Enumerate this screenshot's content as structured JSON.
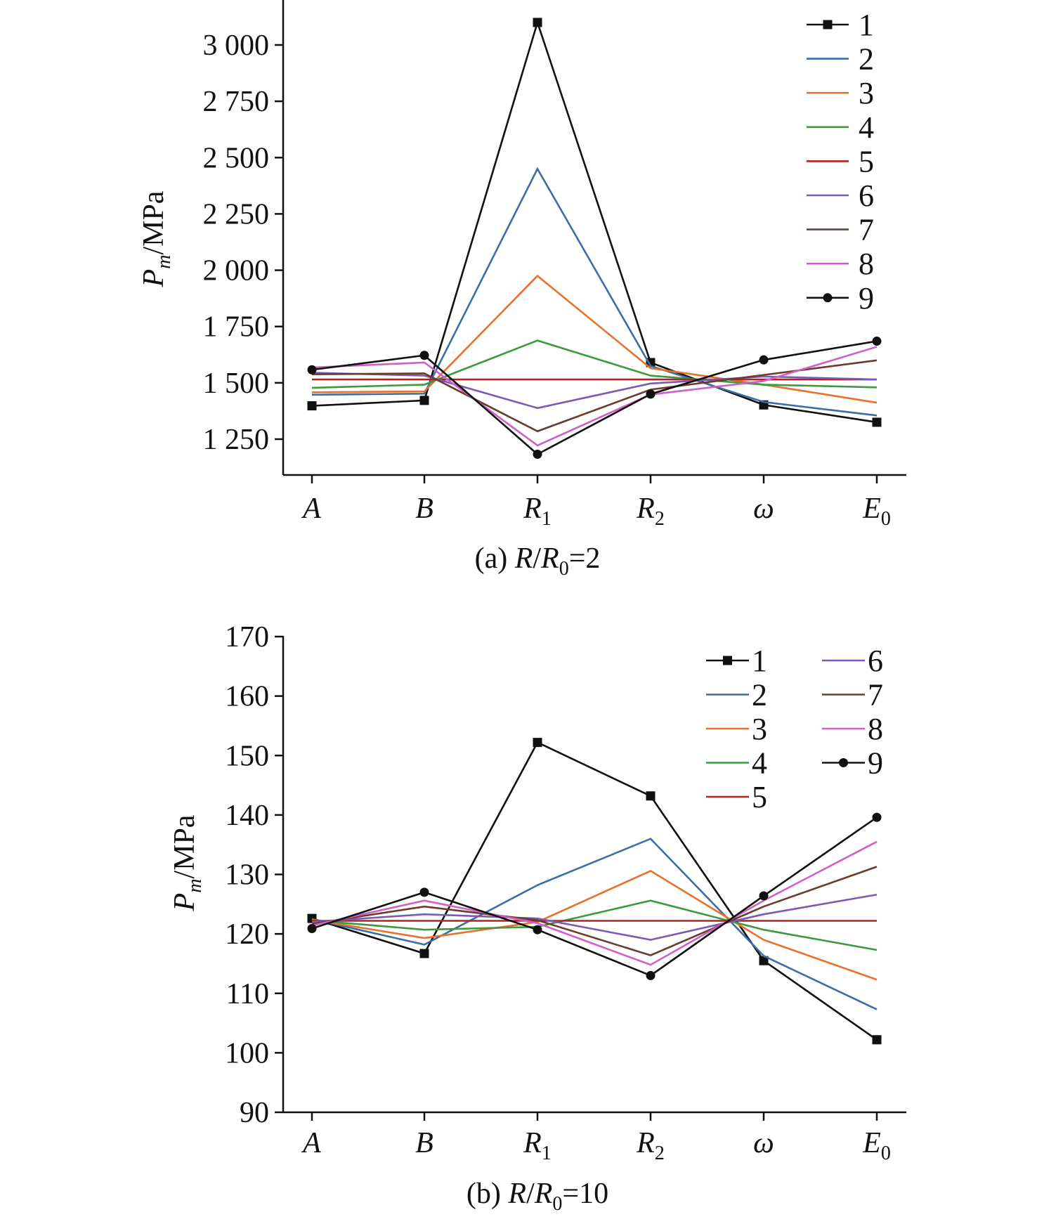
{
  "chart_data": [
    {
      "type": "line",
      "caption": {
        "prefix": "(a) ",
        "ratio_r": "R",
        "ratio_sep": "/",
        "ratio_r0": "R",
        "ratio_r0_sub": "0",
        "ratio_value": "=2"
      },
      "ylabel": {
        "p": "P",
        "sub": "m",
        "unit": "/MPa"
      },
      "ylim": [
        1160,
        3200
      ],
      "yticks": [
        1250,
        1500,
        1750,
        2000,
        2250,
        2500,
        2750,
        3000
      ],
      "ytick_labels": [
        "1 250",
        "1 500",
        "1 750",
        "2 000",
        "2 250",
        "2 500",
        "2 750",
        "3 000"
      ],
      "categories": [
        {
          "main": "A",
          "sub": ""
        },
        {
          "main": "B",
          "sub": ""
        },
        {
          "main": "R",
          "sub": "1"
        },
        {
          "main": "R",
          "sub": "2"
        },
        {
          "main": "ω",
          "sub": ""
        },
        {
          "main": "E",
          "sub": "0"
        }
      ],
      "legend_position": "top-right",
      "series": [
        {
          "name": "1",
          "color": "#111111",
          "marker": "square",
          "values": [
            1398,
            1422,
            3100,
            1590,
            1402,
            1325
          ]
        },
        {
          "name": "2",
          "color": "#3a6ea5",
          "marker": "none",
          "values": [
            1447,
            1452,
            2450,
            1575,
            1415,
            1355
          ]
        },
        {
          "name": "3",
          "color": "#e8702a",
          "marker": "none",
          "values": [
            1458,
            1462,
            1975,
            1565,
            1492,
            1412
          ]
        },
        {
          "name": "4",
          "color": "#3c9a3c",
          "marker": "none",
          "values": [
            1478,
            1492,
            1688,
            1532,
            1492,
            1480
          ]
        },
        {
          "name": "5",
          "color": "#b22222",
          "marker": "none",
          "values": [
            1515,
            1515,
            1515,
            1515,
            1515,
            1515
          ]
        },
        {
          "name": "6",
          "color": "#7b5ab5",
          "marker": "none",
          "values": [
            1545,
            1532,
            1388,
            1497,
            1528,
            1515
          ]
        },
        {
          "name": "7",
          "color": "#6b3b2e",
          "marker": "none",
          "values": [
            1538,
            1542,
            1285,
            1470,
            1535,
            1600
          ]
        },
        {
          "name": "8",
          "color": "#d05fc8",
          "marker": "none",
          "values": [
            1568,
            1590,
            1222,
            1448,
            1508,
            1660
          ]
        },
        {
          "name": "9",
          "color": "#111111",
          "marker": "circle",
          "values": [
            1558,
            1622,
            1183,
            1450,
            1602,
            1685
          ]
        }
      ]
    },
    {
      "type": "line",
      "caption": {
        "prefix": "(b) ",
        "ratio_r": "R",
        "ratio_sep": "/",
        "ratio_r0": "R",
        "ratio_r0_sub": "0",
        "ratio_value": "=10"
      },
      "ylabel": {
        "p": "P",
        "sub": "m",
        "unit": "/MPa"
      },
      "ylim": [
        90,
        170
      ],
      "yticks": [
        90,
        100,
        110,
        120,
        130,
        140,
        150,
        160,
        170
      ],
      "ytick_labels": [
        "90",
        "100",
        "110",
        "120",
        "130",
        "140",
        "150",
        "160",
        "170"
      ],
      "categories": [
        {
          "main": "A",
          "sub": ""
        },
        {
          "main": "B",
          "sub": ""
        },
        {
          "main": "R",
          "sub": "1"
        },
        {
          "main": "R",
          "sub": "2"
        },
        {
          "main": "ω",
          "sub": ""
        },
        {
          "main": "E",
          "sub": "0"
        }
      ],
      "legend_position": "top-right, two columns",
      "series": [
        {
          "name": "1",
          "color": "#111111",
          "marker": "square",
          "values": [
            122.6,
            116.7,
            152.2,
            143.2,
            115.5,
            102.2
          ]
        },
        {
          "name": "2",
          "color": "#3a6ea5",
          "marker": "none",
          "values": [
            122.5,
            118.2,
            128.2,
            136.0,
            116.3,
            107.3
          ]
        },
        {
          "name": "3",
          "color": "#e8702a",
          "marker": "none",
          "values": [
            122.4,
            119.3,
            122.0,
            130.6,
            119.0,
            112.3
          ]
        },
        {
          "name": "4",
          "color": "#3c9a3c",
          "marker": "none",
          "values": [
            122.3,
            120.7,
            121.2,
            125.6,
            120.7,
            117.3
          ]
        },
        {
          "name": "5",
          "color": "#b22222",
          "marker": "none",
          "values": [
            122.2,
            122.2,
            122.2,
            122.2,
            122.2,
            122.2
          ]
        },
        {
          "name": "6",
          "color": "#7b5ab5",
          "marker": "none",
          "values": [
            122.0,
            123.3,
            122.6,
            119.0,
            123.3,
            126.6
          ]
        },
        {
          "name": "7",
          "color": "#6b3b2e",
          "marker": "none",
          "values": [
            121.7,
            124.6,
            122.3,
            116.4,
            124.6,
            131.3
          ]
        },
        {
          "name": "8",
          "color": "#d05fc8",
          "marker": "none",
          "values": [
            121.4,
            125.6,
            121.8,
            114.8,
            125.6,
            135.5
          ]
        },
        {
          "name": "9",
          "color": "#111111",
          "marker": "circle",
          "values": [
            120.9,
            127.0,
            120.7,
            113.0,
            126.4,
            139.6
          ]
        }
      ]
    }
  ]
}
